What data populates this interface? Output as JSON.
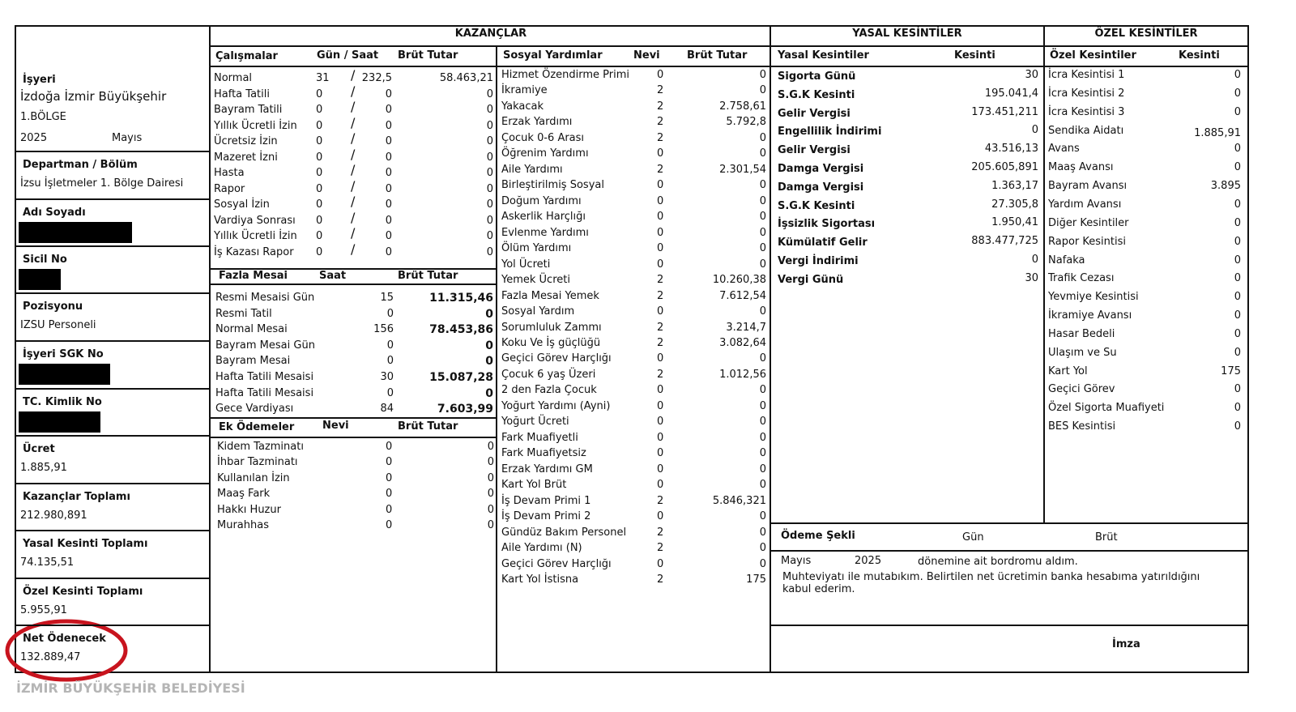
{
  "left": {
    "isyeri": {
      "label": "İşyeri",
      "name": "İzdoğa İzmir Büyükşehir",
      "region": "1.BÖLGE",
      "year": "2025",
      "month": "Mayıs"
    },
    "fields": [
      {
        "label": "Departman / Bölüm",
        "value": "İzsu İşletmeler 1. Bölge Dairesi"
      },
      {
        "label": "Adı Soyadı"
      },
      {
        "label": "Sicil No"
      },
      {
        "label": "Pozisyonu",
        "value": "IZSU Personeli"
      },
      {
        "label": "İşyeri SGK No"
      },
      {
        "label": "TC. Kimlik No"
      },
      {
        "label": "Ücret",
        "value": "1.885,91"
      },
      {
        "label": "Kazançlar Toplamı",
        "value": "212.980,891"
      },
      {
        "label": "Yasal Kesinti Toplamı",
        "value": "74.135,51"
      },
      {
        "label": "Özel Kesinti Toplamı",
        "value": "5.955,91"
      },
      {
        "label": "Net Ödenecek",
        "value": "132.889,47"
      }
    ],
    "watermark": "İZMİR BÜYÜKŞEHİR BELEDİYESİ"
  },
  "kazanclar": {
    "title": "KAZANÇLAR",
    "calismalar": {
      "headers": [
        "Çalışmalar",
        "Gün / Saat",
        "Brüt Tutar"
      ],
      "separator": "/",
      "rows": [
        [
          "Normal",
          "31",
          "232,5",
          "58.463,21"
        ],
        [
          "Hafta Tatili",
          "0",
          "0",
          "0"
        ],
        [
          "Bayram Tatili",
          "0",
          "0",
          "0"
        ],
        [
          "Yıllık Ücretli İzin",
          "0",
          "0",
          "0"
        ],
        [
          "Ücretsiz İzin",
          "0",
          "0",
          "0"
        ],
        [
          "Mazeret İzni",
          "0",
          "0",
          "0"
        ],
        [
          "Hasta",
          "0",
          "0",
          "0"
        ],
        [
          "Rapor",
          "0",
          "0",
          "0"
        ],
        [
          "Sosyal İzin",
          "0",
          "0",
          "0"
        ],
        [
          "Vardiya Sonrası",
          "0",
          "0",
          "0"
        ],
        [
          "Yıllık Ücretli İzin",
          "0",
          "0",
          "0"
        ],
        [
          "İş Kazası Rapor",
          "0",
          "0",
          "0"
        ]
      ]
    },
    "fazla_mesai": {
      "headers": [
        "Fazla Mesai",
        "Saat",
        "Brüt Tutar"
      ],
      "rows": [
        [
          "Resmi Mesaisi Gün",
          "15",
          "11.315,46"
        ],
        [
          "Resmi Tatil",
          "0",
          "0"
        ],
        [
          "Normal Mesai",
          "156",
          "78.453,86"
        ],
        [
          "Bayram Mesai Gün",
          "0",
          "0"
        ],
        [
          "Bayram Mesai",
          "0",
          "0"
        ],
        [
          "Hafta Tatili Mesaisi",
          "30",
          "15.087,28"
        ],
        [
          "Hafta Tatili Mesaisi",
          "0",
          "0"
        ],
        [
          "Gece Vardiyası",
          "84",
          "7.603,99"
        ]
      ]
    },
    "ek_odemeler": {
      "headers": [
        "Ek Ödemeler",
        "Nevi",
        "Brüt Tutar"
      ],
      "rows": [
        [
          "Kidem Tazminatı",
          "0",
          "0"
        ],
        [
          "İhbar Tazminatı",
          "0",
          "0"
        ],
        [
          "Kullanılan İzin",
          "0",
          "0"
        ],
        [
          "Maaş Fark",
          "0",
          "0"
        ],
        [
          "Hakkı Huzur",
          "0",
          "0"
        ],
        [
          "Murahhas",
          "0",
          "0"
        ]
      ]
    },
    "sosyal": {
      "headers": [
        "Sosyal Yardımlar",
        "Nevi",
        "Brüt Tutar"
      ],
      "rows": [
        [
          "Hizmet Özendirme Primi",
          "0",
          "0"
        ],
        [
          "İkramiye",
          "2",
          "0"
        ],
        [
          "Yakacak",
          "2",
          "2.758,61"
        ],
        [
          "Erzak Yardımı",
          "2",
          "5.792,8"
        ],
        [
          "Çocuk 0-6 Arası",
          "2",
          "0"
        ],
        [
          "Öğrenim Yardımı",
          "0",
          "0"
        ],
        [
          "Aile Yardımı",
          "2",
          "2.301,54"
        ],
        [
          "Birleştirilmiş Sosyal",
          "0",
          "0"
        ],
        [
          "Doğum Yardımı",
          "0",
          "0"
        ],
        [
          "Askerlik Harçlığı",
          "0",
          "0"
        ],
        [
          "Evlenme Yardımı",
          "0",
          "0"
        ],
        [
          "Ölüm Yardımı",
          "0",
          "0"
        ],
        [
          "Yol Ücreti",
          "0",
          "0"
        ],
        [
          "Yemek Ücreti",
          "2",
          "10.260,38"
        ],
        [
          "Fazla Mesai Yemek",
          "2",
          "7.612,54"
        ],
        [
          "Sosyal Yardım",
          "0",
          "0"
        ],
        [
          "Sorumluluk Zammı",
          "2",
          "3.214,7"
        ],
        [
          "Koku Ve İş güçlüğü",
          "2",
          "3.082,64"
        ],
        [
          "Geçici Görev Harçlığı",
          "0",
          "0"
        ],
        [
          "Çocuk 6 yaş Üzeri",
          "2",
          "1.012,56"
        ],
        [
          "2 den Fazla Çocuk",
          "0",
          "0"
        ],
        [
          "Yoğurt Yardımı (Ayni)",
          "0",
          "0"
        ],
        [
          "Yoğurt Ücreti",
          "0",
          "0"
        ],
        [
          "Fark Muafiyetli",
          "0",
          "0"
        ],
        [
          "Fark Muafiyetsiz",
          "0",
          "0"
        ],
        [
          "Erzak Yardımı GM",
          "0",
          "0"
        ],
        [
          "Kart Yol Brüt",
          "0",
          "0"
        ],
        [
          "İş Devam Primi 1",
          "2",
          "5.846,321"
        ],
        [
          "İş Devam Primi 2",
          "0",
          "0"
        ],
        [
          "Gündüz Bakım Personel",
          "2",
          "0"
        ],
        [
          "Aile Yardımı (N)",
          "2",
          "0"
        ],
        [
          "Geçici Görev Harçlığı",
          "0",
          "0"
        ],
        [
          "Kart Yol İstisna",
          "2",
          "175"
        ]
      ]
    }
  },
  "yasal": {
    "title": "YASAL KESİNTİLER",
    "headers": [
      "Yasal Kesintiler",
      "Kesinti"
    ],
    "rows": [
      [
        "Sigorta Günü",
        "30"
      ],
      [
        "S.G.K Kesinti",
        "195.041,4"
      ],
      [
        "Gelir Vergisi",
        "173.451,211"
      ],
      [
        "Engellilik İndirimi",
        "0"
      ],
      [
        "Gelir Vergisi",
        "43.516,13"
      ],
      [
        "Damga Vergisi",
        "205.605,891"
      ],
      [
        "Damga Vergisi",
        "1.363,17"
      ],
      [
        "S.G.K Kesinti",
        "27.305,8"
      ],
      [
        "İşsizlik Sigortası",
        "1.950,41"
      ],
      [
        "Kümülatif Gelir",
        "883.477,725"
      ],
      [
        "Vergi İndirimi",
        "0"
      ],
      [
        "Vergi Günü",
        "30"
      ]
    ]
  },
  "ozel": {
    "title": "ÖZEL KESİNTİLER",
    "headers": [
      "Özel Kesintiler",
      "Kesinti"
    ],
    "rows": [
      [
        "İcra Kesintisi 1",
        "0"
      ],
      [
        "İcra Kesintisi 2",
        "0"
      ],
      [
        "İcra Kesintisi 3",
        "0"
      ],
      [
        "Sendika Aidatı",
        "1.885,91"
      ],
      [
        "Avans",
        "0"
      ],
      [
        "Maaş Avansı",
        "0"
      ],
      [
        "Bayram Avansı",
        "3.895"
      ],
      [
        "Yardım Avansı",
        "0"
      ],
      [
        "Diğer Kesintiler",
        "0"
      ],
      [
        "Rapor Kesintisi",
        "0"
      ],
      [
        "Nafaka",
        "0"
      ],
      [
        "Trafik Cezası",
        "0"
      ],
      [
        "Yevmiye Kesintisi",
        "0"
      ],
      [
        "İkramiye Avansı",
        "0"
      ],
      [
        "Hasar Bedeli",
        "0"
      ],
      [
        "Ulaşım ve Su",
        "0"
      ],
      [
        "Kart Yol",
        "175"
      ],
      [
        "Geçici Görev",
        "0"
      ],
      [
        "Özel Sigorta Muafiyeti",
        "0"
      ],
      [
        "BES Kesintisi",
        "0"
      ]
    ]
  },
  "odeme": {
    "label": "Ödeme Şekli",
    "gun": "Gün",
    "brut": "Brüt",
    "month": "Mayıs",
    "year": "2025",
    "received": "dönemine ait bordromu aldım.",
    "statement": "Muhteviyatı ile mutabıkım. Belirtilen net ücretimin banka hesabıma yatırıldığını kabul ederim.",
    "signature": "İmza"
  }
}
